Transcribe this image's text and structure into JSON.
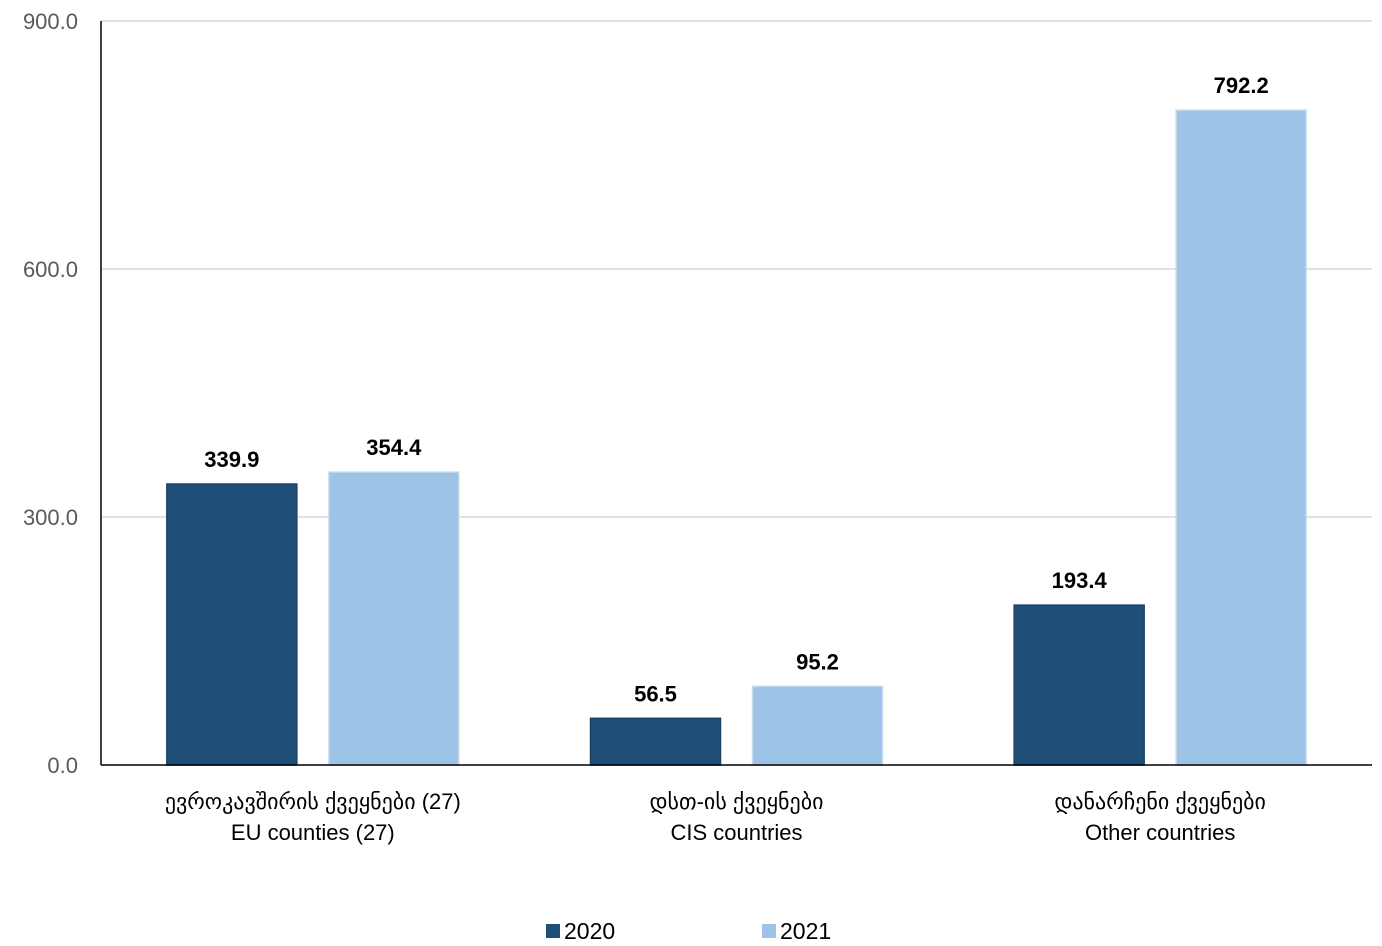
{
  "chart_data": {
    "type": "bar",
    "categories": [
      {
        "line1": "ევროკავშირის ქვეყნები (27)",
        "line2": "EU counties (27)"
      },
      {
        "line1": "დსთ-ის ქვეყნები",
        "line2": "CIS countries"
      },
      {
        "line1": "დანარჩენი ქვეყნები",
        "line2": "Other countries"
      }
    ],
    "series": [
      {
        "name": "2020",
        "color": "#1f4e79",
        "values": [
          339.9,
          56.5,
          193.4
        ],
        "labels": [
          "339.9",
          "56.5",
          "193.4"
        ]
      },
      {
        "name": "2021",
        "color": "#9dc3e6",
        "values": [
          354.4,
          95.2,
          792.2
        ],
        "labels": [
          "354.4",
          "95.2",
          "792.2"
        ]
      }
    ],
    "yticks": [
      "0.0",
      "300.0",
      "600.0",
      "900.0"
    ],
    "ytick_values": [
      0,
      300,
      600,
      900
    ],
    "ylim": [
      0,
      900
    ],
    "grid": true,
    "legend": "bottom-center"
  }
}
